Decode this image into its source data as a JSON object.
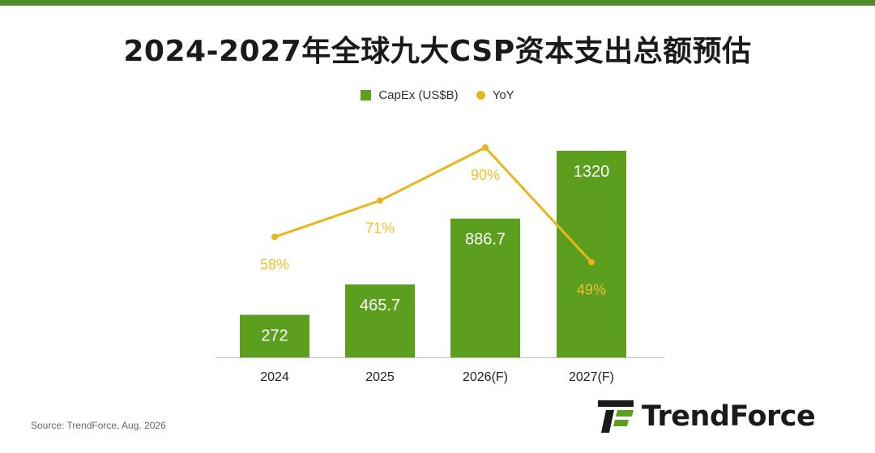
{
  "title": "2024-2027年全球九大CSP资本支出总额预估",
  "legend": {
    "capex": "CapEx (US$B)",
    "yoy": "YoY"
  },
  "source": "Source: TrendForce, Aug. 2026",
  "brand": {
    "name": "TrendForce"
  },
  "colors": {
    "bar": "#5c9e1e",
    "line": "#e8b51c",
    "bar_label": "#ffffff",
    "line_label": "#f2c02b",
    "top_bar": "#4f8a2b"
  },
  "chart_data": {
    "type": "bar",
    "categories": [
      "2024",
      "2025",
      "2026(F)",
      "2027(F)"
    ],
    "series": [
      {
        "name": "CapEx (US$B)",
        "type": "bar",
        "values": [
          272,
          465.7,
          886.7,
          1320
        ],
        "labels": [
          "272",
          "465.7",
          "886.7",
          "1320"
        ]
      },
      {
        "name": "YoY",
        "type": "line",
        "values": [
          58,
          71,
          90,
          49
        ],
        "labels": [
          "58%",
          "71%",
          "90%",
          "49%"
        ]
      }
    ],
    "grid": false,
    "legend_position": "top-center"
  }
}
